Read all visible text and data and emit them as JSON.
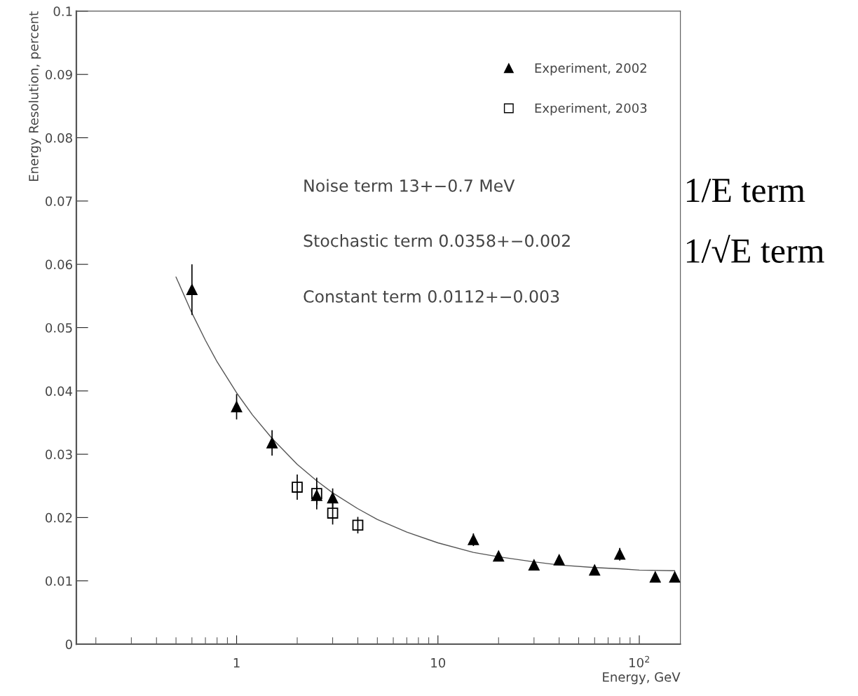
{
  "chart_data": {
    "type": "scatter",
    "xlabel": "Energy, GeV",
    "ylabel": "Energy Resolution, percent",
    "log": "x",
    "xlim": [
      0.16,
      160
    ],
    "xticks": [
      1,
      10,
      {
        "value": 100,
        "label": "10$^{2}$"
      }
    ],
    "ylim": [
      0,
      0.1
    ],
    "yticks": [
      0,
      0.01,
      0.02,
      0.03,
      0.04,
      0.05,
      0.06,
      0.07,
      0.08,
      0.09,
      0.1
    ],
    "legend": "top right",
    "grid": false,
    "series": [
      {
        "name": "Experiment, 2002",
        "marker": "triangle",
        "color": "#000000",
        "x": [
          0.6,
          1,
          1.5,
          2.5,
          3,
          15,
          20,
          30,
          40,
          60,
          80,
          120,
          150
        ],
        "values": [
          0.056,
          0.0375,
          0.0318,
          0.0235,
          0.0231,
          0.0165,
          0.0139,
          0.0125,
          0.0133,
          0.0117,
          0.0142,
          0.0106,
          0.0106
        ],
        "errors": [
          0.004,
          0.002,
          0.002,
          0.0015,
          0.0015,
          0.001,
          0.0005,
          0.0005,
          0.0005,
          0.0005,
          0.001,
          0.0005,
          0.0005
        ]
      },
      {
        "name": "Experiment, 2003",
        "marker": "square",
        "color": "#000000",
        "x": [
          2,
          2.5,
          3,
          4
        ],
        "values": [
          0.0248,
          0.0238,
          0.0207,
          0.0188
        ],
        "errors": [
          0.002,
          0.0025,
          0.0018,
          0.0013
        ]
      },
      {
        "type": "line",
        "marker": "none",
        "color": "#555555",
        "x": [
          0.5,
          0.6,
          0.7,
          0.8,
          1,
          1.2,
          1.5,
          2,
          2.5,
          3,
          4,
          5,
          7,
          10,
          15,
          20,
          30,
          40,
          60,
          80,
          100,
          150
        ],
        "values": [
          0.058,
          0.0523,
          0.048,
          0.0446,
          0.0397,
          0.0362,
          0.0325,
          0.0284,
          0.0258,
          0.0239,
          0.0214,
          0.0197,
          0.0177,
          0.016,
          0.0145,
          0.0138,
          0.013,
          0.0125,
          0.0121,
          0.0119,
          0.0117,
          0.0116
        ]
      }
    ],
    "annotations": [
      "Noise term 13+−0.7 MeV",
      "Stochastic term 0.0358+−0.002",
      "Constant term 0.0112+−0.003",
      "1/E term",
      "1/√E term"
    ]
  }
}
